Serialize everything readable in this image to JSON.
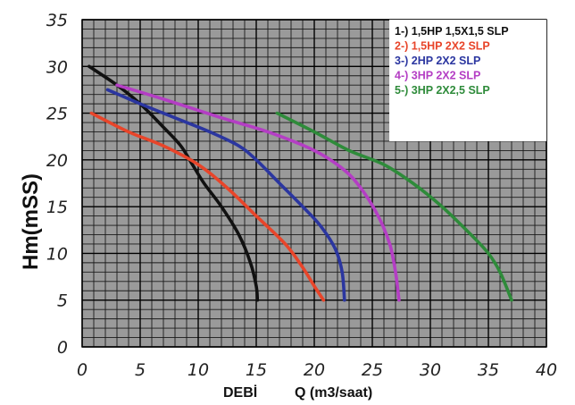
{
  "chart_data": {
    "type": "line",
    "title": "",
    "xlabel_left": "DEBİ",
    "xlabel_right": "Q (m3/saat)",
    "ylabel": "Hm(mSS)",
    "xlim": [
      0,
      40
    ],
    "ylim": [
      0,
      35
    ],
    "x_ticks": [
      0,
      5,
      10,
      15,
      20,
      25,
      30,
      35,
      40
    ],
    "y_ticks": [
      0,
      5,
      10,
      15,
      20,
      25,
      30,
      35
    ],
    "minor_grid_x": 1,
    "minor_grid_y": 1,
    "grid": true,
    "legend_position": "top-right",
    "series": [
      {
        "name": "1-) 1,5HP 1,5X1,5 SLP",
        "color": "#111111",
        "x": [
          0.6,
          3,
          5,
          7,
          8.5,
          9.5,
          10.5,
          12,
          13.5,
          14.5,
          15,
          15.1
        ],
        "y": [
          30,
          28,
          26,
          23.5,
          21.5,
          19.5,
          17.5,
          15,
          12,
          9,
          6.5,
          5
        ]
      },
      {
        "name": "2-) 1,5HP 2X2 SLP",
        "color": "#e8452a",
        "x": [
          0.8,
          4,
          7,
          10,
          12.5,
          15,
          17.5,
          19,
          20,
          20.8
        ],
        "y": [
          25,
          23,
          21.5,
          19.5,
          17,
          14,
          11,
          8.5,
          6.5,
          5
        ]
      },
      {
        "name": "3-) 2HP 2X2 SLP",
        "color": "#2b36a0",
        "x": [
          2.2,
          5,
          8,
          11,
          13.5,
          15,
          17,
          19,
          20.5,
          21.8,
          22.4,
          22.6
        ],
        "y": [
          27.5,
          26,
          24.5,
          23,
          21.5,
          20,
          17.5,
          15,
          13,
          10.5,
          8,
          5
        ]
      },
      {
        "name": "4-) 3HP 2X2 SLP",
        "color": "#b43ec4",
        "x": [
          3,
          7,
          12,
          16,
          20,
          22.5,
          24,
          25.5,
          26.5,
          27,
          27.3
        ],
        "y": [
          28,
          26.5,
          24.5,
          23,
          21,
          19,
          17,
          14,
          11,
          8,
          5
        ]
      },
      {
        "name": "5-) 3HP 2X2,5 SLP",
        "color": "#2e8b3a",
        "x": [
          16.8,
          20,
          23,
          26,
          28.5,
          31,
          33.5,
          35,
          36,
          37
        ],
        "y": [
          25,
          23,
          21,
          19.5,
          17.5,
          15,
          12,
          10,
          8,
          5
        ]
      }
    ]
  }
}
